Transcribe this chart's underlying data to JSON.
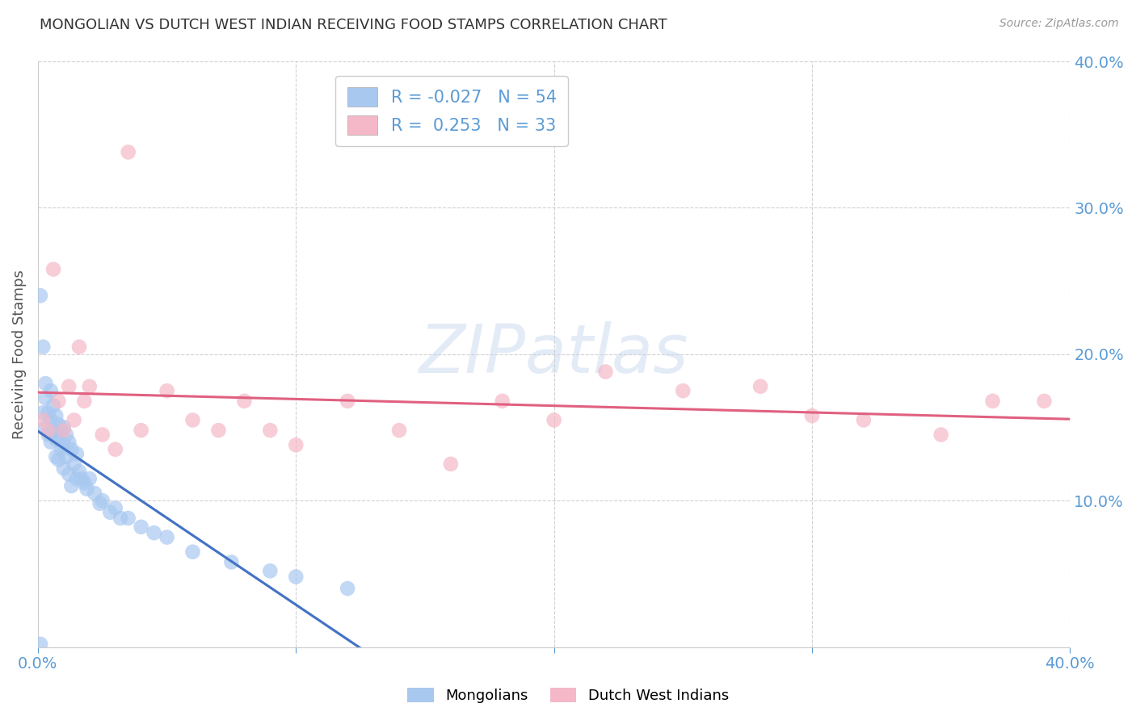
{
  "title": "MONGOLIAN VS DUTCH WEST INDIAN RECEIVING FOOD STAMPS CORRELATION CHART",
  "source": "Source: ZipAtlas.com",
  "ylabel": "Receiving Food Stamps",
  "xlim": [
    0.0,
    0.4
  ],
  "ylim": [
    0.0,
    0.4
  ],
  "legend_blue_R": "-0.027",
  "legend_blue_N": "54",
  "legend_pink_R": "0.253",
  "legend_pink_N": "33",
  "watermark": "ZIPatlas",
  "blue_color": "#A8C8F0",
  "pink_color": "#F5B8C8",
  "blue_line_color": "#4472C4",
  "pink_line_color": "#E06080",
  "blue_dash_color": "#A8C8F0",
  "tick_label_color": "#5B9BD5",
  "background_color": "#FFFFFF",
  "mongolians_x": [
    0.001,
    0.002,
    0.002,
    0.003,
    0.003,
    0.003,
    0.004,
    0.004,
    0.005,
    0.005,
    0.005,
    0.006,
    0.006,
    0.007,
    0.007,
    0.007,
    0.008,
    0.008,
    0.008,
    0.009,
    0.009,
    0.01,
    0.01,
    0.01,
    0.011,
    0.011,
    0.012,
    0.012,
    0.013,
    0.013,
    0.014,
    0.015,
    0.015,
    0.016,
    0.017,
    0.018,
    0.019,
    0.02,
    0.022,
    0.024,
    0.025,
    0.028,
    0.03,
    0.032,
    0.035,
    0.04,
    0.045,
    0.05,
    0.06,
    0.075,
    0.09,
    0.1,
    0.12,
    0.001
  ],
  "mongolians_y": [
    0.24,
    0.205,
    0.16,
    0.18,
    0.17,
    0.15,
    0.16,
    0.145,
    0.175,
    0.155,
    0.14,
    0.165,
    0.148,
    0.158,
    0.142,
    0.13,
    0.152,
    0.145,
    0.128,
    0.148,
    0.135,
    0.15,
    0.138,
    0.122,
    0.145,
    0.13,
    0.14,
    0.118,
    0.135,
    0.11,
    0.125,
    0.132,
    0.115,
    0.12,
    0.115,
    0.112,
    0.108,
    0.115,
    0.105,
    0.098,
    0.1,
    0.092,
    0.095,
    0.088,
    0.088,
    0.082,
    0.078,
    0.075,
    0.065,
    0.058,
    0.052,
    0.048,
    0.04,
    0.002
  ],
  "dutch_x": [
    0.002,
    0.004,
    0.006,
    0.008,
    0.01,
    0.012,
    0.014,
    0.016,
    0.018,
    0.02,
    0.025,
    0.03,
    0.035,
    0.04,
    0.05,
    0.06,
    0.07,
    0.08,
    0.09,
    0.1,
    0.12,
    0.14,
    0.16,
    0.18,
    0.2,
    0.22,
    0.25,
    0.28,
    0.3,
    0.32,
    0.35,
    0.37,
    0.39
  ],
  "dutch_y": [
    0.155,
    0.148,
    0.258,
    0.168,
    0.148,
    0.178,
    0.155,
    0.205,
    0.168,
    0.178,
    0.145,
    0.135,
    0.338,
    0.148,
    0.175,
    0.155,
    0.148,
    0.168,
    0.148,
    0.138,
    0.168,
    0.148,
    0.125,
    0.168,
    0.155,
    0.188,
    0.175,
    0.178,
    0.158,
    0.155,
    0.145,
    0.168,
    0.168
  ]
}
